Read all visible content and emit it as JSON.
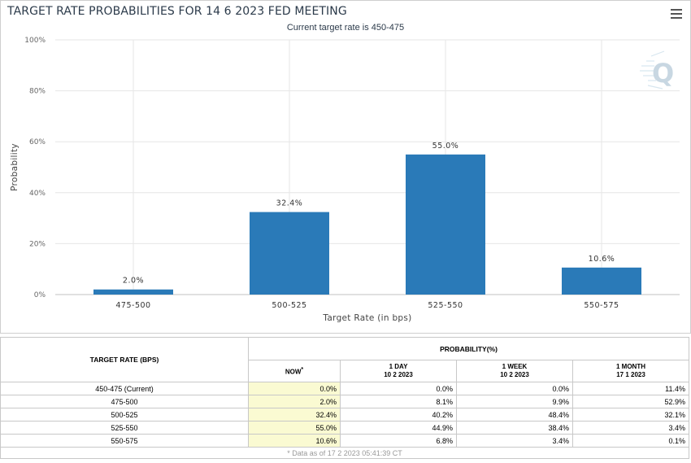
{
  "title": "TARGET RATE PROBABILITIES FOR 14 6 2023 FED MEETING",
  "subtitle": "Current target rate is 450-475",
  "chart_data": {
    "type": "bar",
    "title": "TARGET RATE PROBABILITIES FOR 14 6 2023 FED MEETING",
    "subtitle": "Current target rate is 450-475",
    "xlabel": "Target Rate (in bps)",
    "ylabel": "Probability",
    "categories": [
      "475-500",
      "500-525",
      "525-550",
      "550-575"
    ],
    "values": [
      2.0,
      32.4,
      55.0,
      10.6
    ],
    "data_labels": [
      "2.0%",
      "32.4%",
      "55.0%",
      "10.6%"
    ],
    "ylim": [
      0,
      100
    ],
    "yticks": [
      0,
      20,
      40,
      60,
      80,
      100
    ],
    "ytick_labels": [
      "0%",
      "20%",
      "40%",
      "60%",
      "80%",
      "100%"
    ],
    "grid": true,
    "bar_color": "#2a7ab8"
  },
  "table": {
    "header_target": "TARGET RATE (BPS)",
    "header_probability": "PROBABILITY(%)",
    "columns": [
      {
        "line1": "NOW",
        "line2": "",
        "star": "*"
      },
      {
        "line1": "1 DAY",
        "line2": "10 2 2023",
        "star": ""
      },
      {
        "line1": "1 WEEK",
        "line2": "10 2 2023",
        "star": ""
      },
      {
        "line1": "1 MONTH",
        "line2": "17 1 2023",
        "star": ""
      }
    ],
    "rows": [
      {
        "rate": "450-475 (Current)",
        "now": "0.0%",
        "day": "0.0%",
        "week": "0.0%",
        "month": "11.4%"
      },
      {
        "rate": "475-500",
        "now": "2.0%",
        "day": "8.1%",
        "week": "9.9%",
        "month": "52.9%"
      },
      {
        "rate": "500-525",
        "now": "32.4%",
        "day": "40.2%",
        "week": "48.4%",
        "month": "32.1%"
      },
      {
        "rate": "525-550",
        "now": "55.0%",
        "day": "44.9%",
        "week": "38.4%",
        "month": "3.4%"
      },
      {
        "rate": "550-575",
        "now": "10.6%",
        "day": "6.8%",
        "week": "3.4%",
        "month": "0.1%"
      }
    ],
    "footnote": "* Data as of 17 2 2023 05:41:39 CT"
  },
  "icons": {
    "menu": "hamburger-menu-icon",
    "watermark": "q-logo-watermark"
  }
}
